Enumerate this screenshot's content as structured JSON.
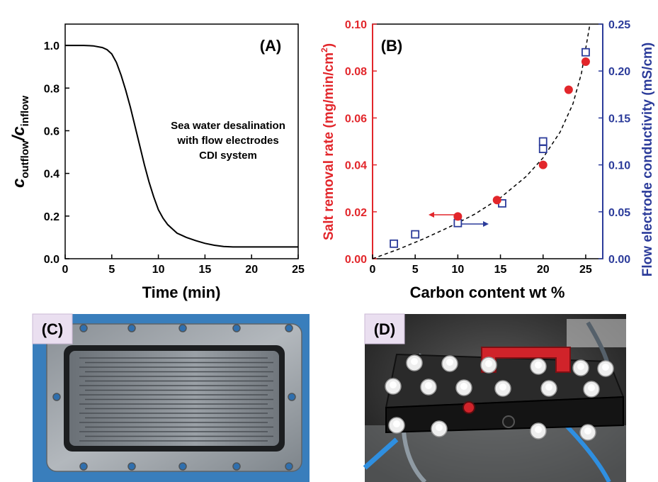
{
  "panels": {
    "a_label": "(A)",
    "b_label": "(B)",
    "c_label": "(C)",
    "d_label": "(D)"
  },
  "colors": {
    "salt_red": "#e2262b",
    "conductivity_blue": "#2b3b9a",
    "axis": "#000000"
  },
  "photo_c": {
    "description_icon": "flow-electrode-plate"
  },
  "photo_d": {
    "description_icon": "cdi-cell-assembly"
  },
  "chart_data": [
    {
      "type": "line",
      "panel": "(A)",
      "annotation": [
        "Sea water desalination",
        "with flow electrodes",
        "CDI system"
      ],
      "xlabel": "Time (min)",
      "ylabel_main": "c",
      "ylabel_sub1": "outflow",
      "ylabel_slash": "/c",
      "ylabel_sub2": "inflow",
      "xlim": [
        0,
        25
      ],
      "ylim": [
        0,
        1.1
      ],
      "xticks": [
        0,
        5,
        10,
        15,
        20,
        25
      ],
      "yticks": [
        "0.0",
        "0.2",
        "0.4",
        "0.6",
        "0.8",
        "1.0"
      ],
      "series": [
        {
          "x": [
            0,
            2,
            3,
            4,
            4.5,
            5,
            5.5,
            6,
            6.5,
            7,
            7.5,
            8,
            8.5,
            9,
            9.5,
            10,
            10.5,
            11,
            11.5,
            12,
            13,
            14,
            15,
            16,
            17,
            18,
            19,
            20,
            22,
            25
          ],
          "y": [
            1.0,
            1.0,
            0.998,
            0.99,
            0.98,
            0.96,
            0.92,
            0.86,
            0.79,
            0.71,
            0.62,
            0.53,
            0.44,
            0.36,
            0.29,
            0.23,
            0.19,
            0.16,
            0.14,
            0.12,
            0.1,
            0.085,
            0.072,
            0.063,
            0.057,
            0.055,
            0.055,
            0.055,
            0.055,
            0.055
          ]
        }
      ]
    },
    {
      "type": "scatter",
      "panel": "(B)",
      "xlabel": "Carbon content wt %",
      "ylabel_left": "Salt removal rate (mg/min/cm",
      "ylabel_left_sup": "2",
      "ylabel_left_end": ")",
      "ylabel_right": "Flow electrode conductivity (mS/cm)",
      "xlim": [
        0,
        27
      ],
      "ylim_left": [
        0,
        0.1
      ],
      "ylim_right": [
        0,
        0.25
      ],
      "xticks": [
        0,
        5,
        10,
        15,
        20,
        25
      ],
      "yticks_left": [
        "0.00",
        "0.02",
        "0.04",
        "0.06",
        "0.08",
        "0.10"
      ],
      "yticks_right": [
        "0.00",
        "0.05",
        "0.10",
        "0.15",
        "0.20",
        "0.25"
      ],
      "series": [
        {
          "axis": "left",
          "marker": "filled-circle",
          "x": [
            10,
            14.6,
            20,
            23,
            25
          ],
          "y": [
            0.018,
            0.025,
            0.04,
            0.072,
            0.084
          ]
        },
        {
          "axis": "right",
          "marker": "open-square",
          "x": [
            2.5,
            5,
            10,
            15.2,
            20,
            20,
            25
          ],
          "y": [
            0.016,
            0.026,
            0.038,
            0.059,
            0.117,
            0.125,
            0.22
          ]
        },
        {
          "axis": "left",
          "marker": "dashed-fit",
          "x": [
            0,
            3,
            6,
            9,
            12,
            15,
            18,
            20,
            22,
            23.5,
            24.5,
            25.5
          ],
          "y": [
            0,
            0.004,
            0.0085,
            0.0135,
            0.019,
            0.026,
            0.035,
            0.043,
            0.054,
            0.066,
            0.079,
            0.1
          ]
        }
      ]
    }
  ]
}
